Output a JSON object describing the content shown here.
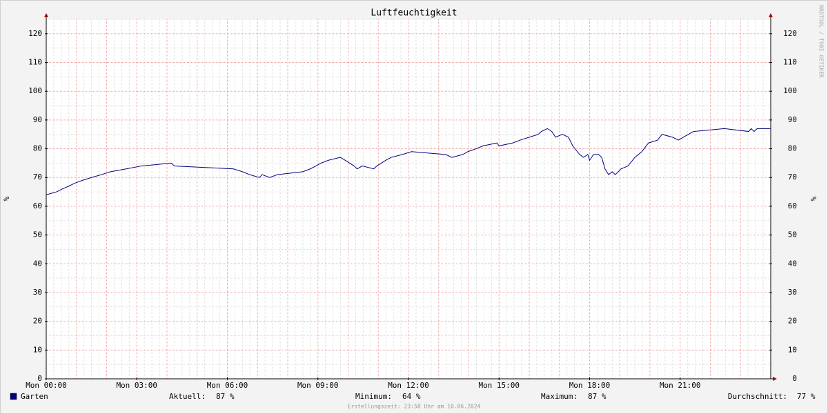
{
  "chart_data": {
    "type": "line",
    "title": "Luftfeuchtigkeit",
    "y_label": "%",
    "watermark": "RRDTOOL / TOBI OETIKER",
    "x": [
      0,
      0.34,
      0.53,
      0.75,
      0.94,
      1.2,
      1.5,
      1.83,
      2.13,
      2.65,
      3.15,
      4.14,
      4.25,
      6.2,
      6.5,
      6.74,
      7.06,
      7.15,
      7.4,
      7.66,
      8.5,
      8.75,
      8.93,
      9.1,
      9.35,
      9.74,
      9.9,
      10.2,
      10.3,
      10.47,
      10.85,
      10.95,
      11.1,
      11.25,
      11.43,
      11.8,
      12.1,
      13.23,
      13.44,
      13.8,
      13.97,
      14.24,
      14.47,
      14.93,
      15.0,
      15.45,
      15.7,
      16.0,
      16.3,
      16.4,
      16.6,
      16.75,
      16.87,
      17.1,
      17.3,
      17.44,
      17.67,
      17.8,
      17.94,
      18.0,
      18.13,
      18.3,
      18.4,
      18.51,
      18.63,
      18.75,
      18.85,
      18.95,
      19.04,
      19.27,
      19.5,
      19.73,
      19.95,
      20.25,
      20.4,
      20.75,
      20.94,
      21.1,
      21.44,
      22.47,
      23.27,
      23.35,
      23.45,
      23.55,
      24
    ],
    "series": [
      {
        "name": "Garten",
        "color": "#000080",
        "values": [
          64,
          65,
          66,
          67,
          68,
          69,
          70,
          71,
          72,
          73,
          74,
          75,
          74,
          73,
          72,
          71,
          70,
          71,
          70,
          71,
          72,
          73,
          74,
          75,
          76,
          77,
          76,
          74,
          73,
          74,
          73,
          74,
          75,
          76,
          77,
          78,
          79,
          78,
          77,
          78,
          79,
          80,
          81,
          82,
          81,
          82,
          83,
          84,
          85,
          86,
          87,
          86,
          84,
          85,
          84,
          81,
          78,
          77,
          78,
          76,
          78,
          78,
          77,
          73,
          71,
          72,
          71,
          72,
          73,
          74,
          77,
          79,
          82,
          83,
          85,
          84,
          83,
          84,
          86,
          87,
          86,
          87,
          86,
          87,
          87
        ]
      }
    ],
    "xlim": [
      0,
      24
    ],
    "xticks": [
      {
        "value": 0,
        "label": "Mon 00:00"
      },
      {
        "value": 3,
        "label": "Mon 03:00"
      },
      {
        "value": 6,
        "label": "Mon 06:00"
      },
      {
        "value": 9,
        "label": "Mon 09:00"
      },
      {
        "value": 12,
        "label": "Mon 12:00"
      },
      {
        "value": 15,
        "label": "Mon 15:00"
      },
      {
        "value": 18,
        "label": "Mon 18:00"
      },
      {
        "value": 21,
        "label": "Mon 21:00"
      }
    ],
    "ylim": [
      0,
      125
    ],
    "yticks": [
      0,
      10,
      20,
      30,
      40,
      50,
      60,
      70,
      80,
      90,
      100,
      110,
      120
    ],
    "grid": true,
    "stats": [
      {
        "label": "Aktuell:",
        "value": "87 %"
      },
      {
        "label": "Minimum:",
        "value": "64 %"
      },
      {
        "label": "Maximum:",
        "value": "87 %"
      },
      {
        "label": "Durchschnitt:",
        "value": "77 %"
      }
    ],
    "footer": "Erstellungszeit: 23:58 Uhr am 10.06.2024"
  }
}
